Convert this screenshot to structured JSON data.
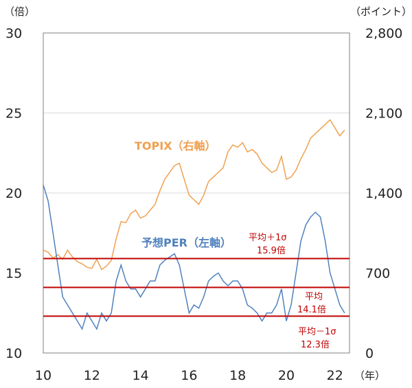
{
  "chart_data": {
    "type": "line",
    "title": "",
    "left_axis": {
      "unit_label": "（倍）",
      "range": [
        10,
        30
      ],
      "ticks": [
        10,
        15,
        20,
        25,
        30
      ]
    },
    "right_axis": {
      "unit_label": "（ポイント）",
      "range": [
        0,
        2800
      ],
      "ticks": [
        "0",
        "700",
        "1,400",
        "2,100",
        "2,800"
      ],
      "tick_values": [
        0,
        700,
        1400,
        2100,
        2800
      ]
    },
    "x_axis": {
      "unit_label": "（年）",
      "range": [
        2010,
        2022.6
      ],
      "ticks": [
        "10",
        "12",
        "14",
        "16",
        "18",
        "20",
        "22"
      ],
      "tick_values": [
        2010,
        2012,
        2014,
        2016,
        2018,
        2020,
        2022
      ]
    },
    "gridlines_left": [
      20,
      25
    ],
    "series": [
      {
        "name": "TOPIX（右軸）",
        "axis": "right",
        "color": "#f0a050",
        "x": [
          2010.0,
          2010.2,
          2010.4,
          2010.6,
          2010.8,
          2011.0,
          2011.2,
          2011.4,
          2011.6,
          2011.8,
          2012.0,
          2012.2,
          2012.4,
          2012.6,
          2012.8,
          2013.0,
          2013.2,
          2013.4,
          2013.6,
          2013.8,
          2014.0,
          2014.2,
          2014.4,
          2014.6,
          2014.8,
          2015.0,
          2015.2,
          2015.4,
          2015.6,
          2015.8,
          2016.0,
          2016.2,
          2016.4,
          2016.6,
          2016.8,
          2017.0,
          2017.2,
          2017.4,
          2017.6,
          2017.8,
          2018.0,
          2018.2,
          2018.4,
          2018.6,
          2018.8,
          2019.0,
          2019.2,
          2019.4,
          2019.6,
          2019.8,
          2020.0,
          2020.2,
          2020.4,
          2020.6,
          2020.8,
          2021.0,
          2021.2,
          2021.4,
          2021.6,
          2021.8,
          2022.0,
          2022.2,
          2022.4
        ],
        "y": [
          900,
          880,
          830,
          860,
          820,
          900,
          840,
          800,
          780,
          750,
          740,
          820,
          730,
          760,
          810,
          1000,
          1150,
          1140,
          1220,
          1250,
          1180,
          1200,
          1250,
          1300,
          1420,
          1520,
          1580,
          1640,
          1660,
          1520,
          1380,
          1340,
          1300,
          1380,
          1500,
          1540,
          1580,
          1620,
          1760,
          1820,
          1800,
          1840,
          1760,
          1780,
          1740,
          1660,
          1620,
          1580,
          1600,
          1720,
          1520,
          1540,
          1600,
          1700,
          1780,
          1880,
          1920,
          1960,
          2000,
          2040,
          1970,
          1900,
          1950
        ]
      },
      {
        "name": "予想PER（左軸）",
        "axis": "left",
        "color": "#4f81bd",
        "x": [
          2010.0,
          2010.2,
          2010.4,
          2010.6,
          2010.8,
          2011.0,
          2011.2,
          2011.4,
          2011.6,
          2011.8,
          2012.0,
          2012.2,
          2012.4,
          2012.6,
          2012.8,
          2013.0,
          2013.2,
          2013.4,
          2013.6,
          2013.8,
          2014.0,
          2014.2,
          2014.4,
          2014.6,
          2014.8,
          2015.0,
          2015.2,
          2015.4,
          2015.6,
          2015.8,
          2016.0,
          2016.2,
          2016.4,
          2016.6,
          2016.8,
          2017.0,
          2017.2,
          2017.4,
          2017.6,
          2017.8,
          2018.0,
          2018.2,
          2018.4,
          2018.6,
          2018.8,
          2019.0,
          2019.2,
          2019.4,
          2019.6,
          2019.8,
          2020.0,
          2020.2,
          2020.4,
          2020.6,
          2020.8,
          2021.0,
          2021.2,
          2021.4,
          2021.6,
          2021.8,
          2022.0,
          2022.2,
          2022.4
        ],
        "y": [
          20.5,
          19.5,
          17.5,
          15.5,
          13.5,
          13.0,
          12.5,
          12.0,
          11.5,
          12.5,
          12.0,
          11.5,
          12.5,
          12.0,
          12.5,
          14.5,
          15.5,
          14.5,
          14.0,
          14.0,
          13.5,
          14.0,
          14.5,
          14.5,
          15.5,
          15.8,
          16.0,
          16.2,
          15.5,
          14.0,
          12.5,
          13.0,
          12.8,
          13.5,
          14.5,
          14.8,
          15.0,
          14.5,
          14.2,
          14.5,
          14.5,
          14.0,
          13.0,
          12.8,
          12.5,
          12.0,
          12.5,
          12.5,
          13.0,
          14.0,
          12.0,
          13.0,
          15.0,
          17.0,
          18.0,
          18.5,
          18.8,
          18.5,
          17.0,
          15.0,
          14.0,
          13.0,
          12.5
        ]
      }
    ],
    "reference_lines": [
      {
        "value": 15.9,
        "axis": "left",
        "color": "#c00000"
      },
      {
        "value": 14.1,
        "axis": "left",
        "color": "#c00000"
      },
      {
        "value": 12.3,
        "axis": "left",
        "color": "#c00000"
      }
    ]
  },
  "labels": {
    "topix": "TOPIX（右軸）",
    "per": "予想PER（左軸）",
    "plus_sigma_line1": "平均＋1σ",
    "plus_sigma_line2": "15.9倍",
    "mean_line1": "平均",
    "mean_line2": "14.1倍",
    "minus_sigma_line1": "平均－1σ",
    "minus_sigma_line2": "12.3倍"
  }
}
